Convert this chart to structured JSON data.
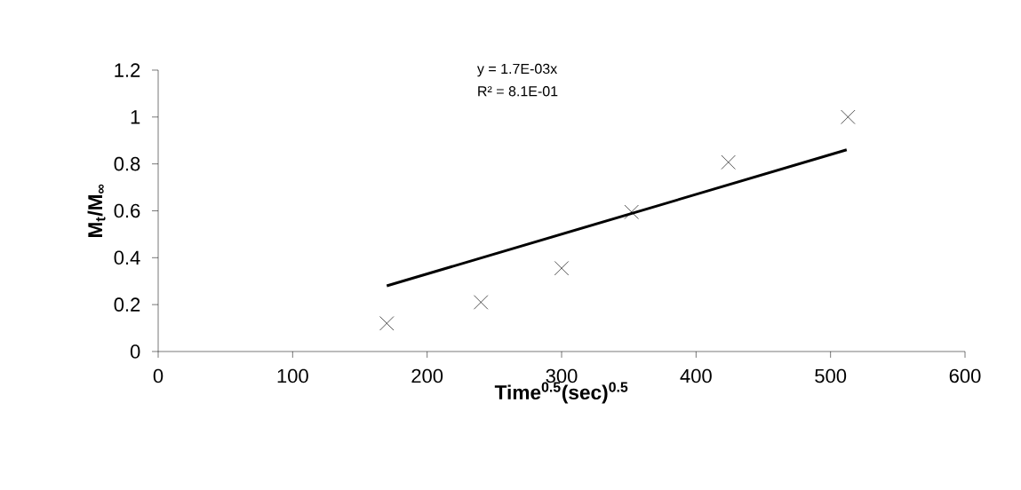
{
  "chart_data": {
    "type": "scatter",
    "xlabel": "Time$^{0.5}$(sec)$^{0.5}$",
    "ylabel": "M$_{t}$/M$_{∞}$",
    "annotations": [
      "y = 1.7E-03x",
      "R² = 8.1E-01"
    ],
    "series": [
      {
        "x": [
          170,
          240,
          300,
          352,
          424,
          513
        ],
        "values": [
          0.12,
          0.21,
          0.355,
          0.595,
          0.807,
          1.0
        ],
        "color": "#000000",
        "marker": "cross"
      },
      {
        "type": "line",
        "x": [
          170,
          512
        ],
        "values": [
          0.28,
          0.86
        ],
        "color": "#000000",
        "marker": "none",
        "line_style": "solid"
      }
    ],
    "xlim": [
      0,
      600
    ],
    "xticks": [
      0,
      100,
      200,
      300,
      400,
      500,
      600
    ],
    "ylim": [
      0,
      1.2
    ],
    "yticks": [
      0,
      0.2,
      0.4,
      0.6,
      0.8,
      1,
      1.2
    ],
    "grid": false
  }
}
